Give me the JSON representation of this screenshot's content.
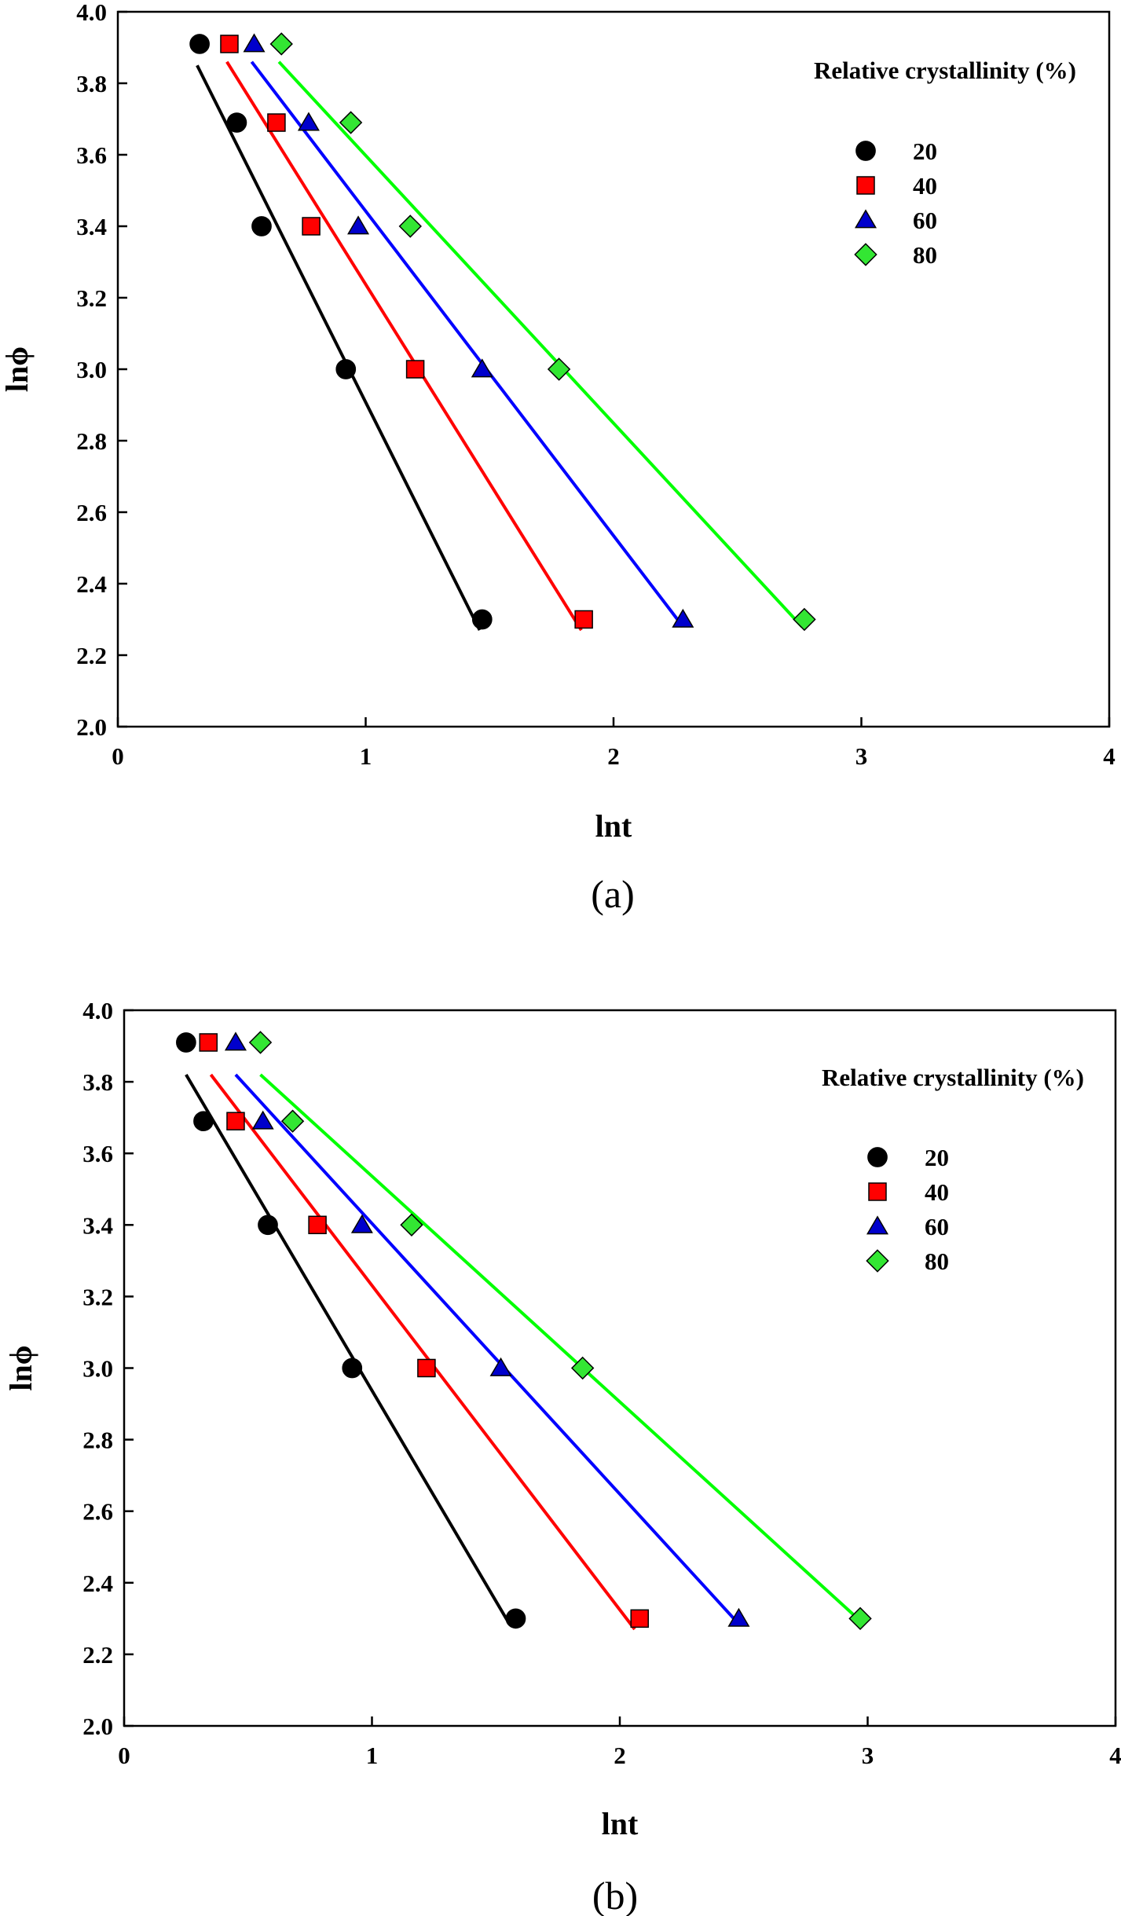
{
  "colors": {
    "20": "#000000",
    "40": "#ff0000",
    "60": "#0000ff",
    "80": "#00ff00",
    "marker_fill_20": "#000000",
    "marker_fill_40": "#ff0000",
    "marker_fill_60": "#0000cc",
    "marker_fill_80": "#33e633"
  },
  "chart_data": [
    {
      "type": "scatter",
      "panel_label": "(a)",
      "xlabel": "lnt",
      "ylabel": "lnϕ",
      "xlim": [
        0,
        4
      ],
      "ylim": [
        2.0,
        4.0
      ],
      "xticks": [
        "0",
        "1",
        "2",
        "3",
        "4"
      ],
      "yticks": [
        "2.0",
        "2.2",
        "2.4",
        "2.6",
        "2.8",
        "3.0",
        "3.2",
        "3.4",
        "3.6",
        "3.8",
        "4.0"
      ],
      "legend_title": "Relative crystallinity (%)",
      "legend_position": "top-right",
      "series": [
        {
          "name": "20",
          "marker": "circle",
          "points": [
            [
              0.33,
              3.91
            ],
            [
              0.48,
              3.69
            ],
            [
              0.58,
              3.4
            ],
            [
              0.92,
              3.0
            ],
            [
              1.47,
              2.3
            ]
          ],
          "fit": [
            [
              0.32,
              3.85
            ],
            [
              1.46,
              2.27
            ]
          ]
        },
        {
          "name": "40",
          "marker": "square",
          "points": [
            [
              0.45,
              3.91
            ],
            [
              0.64,
              3.69
            ],
            [
              0.78,
              3.4
            ],
            [
              1.2,
              3.0
            ],
            [
              1.88,
              2.3
            ]
          ],
          "fit": [
            [
              0.44,
              3.86
            ],
            [
              1.87,
              2.27
            ]
          ]
        },
        {
          "name": "60",
          "marker": "triangle",
          "points": [
            [
              0.55,
              3.91
            ],
            [
              0.77,
              3.69
            ],
            [
              0.97,
              3.4
            ],
            [
              1.47,
              3.0
            ],
            [
              2.28,
              2.3
            ]
          ],
          "fit": [
            [
              0.54,
              3.86
            ],
            [
              2.28,
              2.28
            ]
          ]
        },
        {
          "name": "80",
          "marker": "diamond",
          "points": [
            [
              0.66,
              3.91
            ],
            [
              0.94,
              3.69
            ],
            [
              1.18,
              3.4
            ],
            [
              1.78,
              3.0
            ],
            [
              2.77,
              2.3
            ]
          ],
          "fit": [
            [
              0.65,
              3.86
            ],
            [
              2.76,
              2.28
            ]
          ]
        }
      ]
    },
    {
      "type": "scatter",
      "panel_label": "(b)",
      "xlabel": "lnt",
      "ylabel": "lnϕ",
      "xlim": [
        0,
        4
      ],
      "ylim": [
        2.0,
        4.0
      ],
      "xticks": [
        "0",
        "1",
        "2",
        "3",
        "4"
      ],
      "yticks": [
        "2.0",
        "2.2",
        "2.4",
        "2.6",
        "2.8",
        "3.0",
        "3.2",
        "3.4",
        "3.6",
        "3.8",
        "4.0"
      ],
      "legend_title": "Relative crystallinity (%)",
      "legend_position": "top-right",
      "series": [
        {
          "name": "20",
          "marker": "circle",
          "points": [
            [
              0.25,
              3.91
            ],
            [
              0.32,
              3.69
            ],
            [
              0.58,
              3.4
            ],
            [
              0.92,
              3.0
            ],
            [
              1.58,
              2.3
            ]
          ],
          "fit": [
            [
              0.25,
              3.82
            ],
            [
              1.55,
              2.29
            ]
          ]
        },
        {
          "name": "40",
          "marker": "square",
          "points": [
            [
              0.34,
              3.91
            ],
            [
              0.45,
              3.69
            ],
            [
              0.78,
              3.4
            ],
            [
              1.22,
              3.0
            ],
            [
              2.08,
              2.3
            ]
          ],
          "fit": [
            [
              0.35,
              3.82
            ],
            [
              2.06,
              2.27
            ]
          ]
        },
        {
          "name": "60",
          "marker": "triangle",
          "points": [
            [
              0.45,
              3.91
            ],
            [
              0.56,
              3.69
            ],
            [
              0.96,
              3.4
            ],
            [
              1.52,
              3.0
            ],
            [
              2.48,
              2.3
            ]
          ],
          "fit": [
            [
              0.45,
              3.82
            ],
            [
              2.46,
              2.3
            ]
          ]
        },
        {
          "name": "80",
          "marker": "diamond",
          "points": [
            [
              0.55,
              3.91
            ],
            [
              0.68,
              3.69
            ],
            [
              1.16,
              3.4
            ],
            [
              1.85,
              3.0
            ],
            [
              2.97,
              2.3
            ]
          ],
          "fit": [
            [
              0.55,
              3.82
            ],
            [
              2.96,
              2.3
            ]
          ]
        }
      ]
    }
  ]
}
